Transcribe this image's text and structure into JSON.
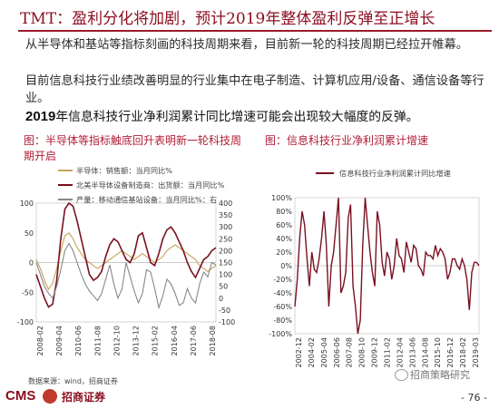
{
  "header": {
    "title": "TMT：盈利分化将加剧，预计2019年整体盈利反弹至正增长"
  },
  "body": {
    "para1": "从半导体和基站等指标刻画的科技周期来看，目前新一轮的科技周期已经拉开帷幕。",
    "para2": "目前信息科技行业绩改善明显的行业集中在电子制造、计算机应用/设备、通信设备等行业。",
    "para3_year": "2019",
    "para3_rest": "年信息科技行业净利润累计同比增速可能会出现较大幅度的反弹。"
  },
  "chart_data": [
    {
      "type": "line",
      "title": "图：半导体等指标触底回升表明新一轮科技周期开启",
      "x_tick_labels": [
        "2008-02",
        "2009-04",
        "2010-06",
        "2011-08",
        "2012-10",
        "2013-12",
        "2015-02",
        "2016-04",
        "2017-06",
        "2018-08"
      ],
      "y_left": {
        "ticks": [
          -100,
          -50,
          0,
          50,
          100
        ],
        "range": [
          -100,
          100
        ]
      },
      "y_right": {
        "ticks": [
          -100,
          -50,
          0,
          50,
          100,
          150,
          200,
          250,
          300,
          350,
          400
        ],
        "range": [
          -100,
          400
        ]
      },
      "series": [
        {
          "name": "半导体：销售额：当月同比%",
          "color": "#c5a35a",
          "axis": "left",
          "values": [
            5,
            -10,
            -30,
            -45,
            -35,
            -10,
            20,
            45,
            50,
            40,
            25,
            15,
            5,
            0,
            -5,
            -10,
            -5,
            0,
            5,
            10,
            15,
            20,
            15,
            10,
            5,
            10,
            15,
            10,
            5,
            0,
            5,
            10,
            20,
            25,
            30,
            25,
            20,
            15,
            10,
            5,
            -5,
            -10,
            -15,
            -10,
            -5
          ]
        },
        {
          "name": "北美半导体设备制造商：出货额：当月同比%",
          "color": "#7a1020",
          "axis": "left",
          "values": [
            -20,
            -40,
            -60,
            -75,
            -70,
            -30,
            40,
            90,
            100,
            95,
            70,
            40,
            10,
            -20,
            -30,
            -25,
            -15,
            10,
            30,
            40,
            35,
            20,
            5,
            0,
            15,
            45,
            50,
            25,
            0,
            -5,
            15,
            40,
            55,
            60,
            50,
            35,
            20,
            0,
            -15,
            -25,
            -10,
            5,
            10,
            20,
            25
          ]
        },
        {
          "name": "产量：移动通信基站设备：当月同比%：右",
          "color": "#888888",
          "axis": "right",
          "values": [
            150,
            100,
            50,
            20,
            0,
            50,
            120,
            200,
            230,
            200,
            150,
            100,
            60,
            30,
            10,
            -10,
            20,
            80,
            140,
            60,
            0,
            40,
            150,
            90,
            30,
            -20,
            20,
            120,
            110,
            40,
            -40,
            10,
            80,
            60,
            20,
            -30,
            -20,
            40,
            0,
            -20,
            60,
            110,
            90,
            150,
            140
          ]
        }
      ]
    },
    {
      "type": "line",
      "title": "图：信息科技行业净利润累计增速",
      "x_tick_labels": [
        "2002-12",
        "2004-02",
        "2005-04",
        "2006-06",
        "2007-08",
        "2008-10",
        "2009-12",
        "2011-02",
        "2012-04",
        "2013-06",
        "2014-08",
        "2015-10",
        "2016-12",
        "2018-02",
        "2019-03"
      ],
      "y": {
        "ticks": [
          -100,
          -80,
          -60,
          -40,
          -20,
          0,
          20,
          40,
          60,
          80,
          100
        ],
        "range": [
          -100,
          100
        ]
      },
      "series": [
        {
          "name": "信息科技行业净利润累计同比增速",
          "color": "#7a1020",
          "values": [
            -60,
            -20,
            40,
            80,
            60,
            10,
            -30,
            20,
            -5,
            -10,
            10,
            40,
            80,
            30,
            -60,
            0,
            20,
            60,
            100,
            -40,
            -30,
            -10,
            70,
            90,
            -30,
            -60,
            -100,
            -80,
            30,
            100,
            60,
            20,
            -10,
            -30,
            80,
            60,
            5,
            -15,
            20,
            10,
            -20,
            0,
            40,
            15,
            10,
            -10,
            35,
            20,
            5,
            30,
            25,
            0,
            -5,
            -15,
            20,
            15,
            15,
            10,
            30,
            15,
            25,
            20,
            10,
            -20,
            -10,
            10,
            10,
            0,
            -5,
            10,
            0,
            -20,
            -65,
            -10,
            5,
            5,
            0
          ]
        }
      ]
    }
  ],
  "footer": {
    "source": "数据来源：wind，招商证券",
    "logo_text": "CMS",
    "logo_cn": "招商证券",
    "wechat": "招商策略研究",
    "page": "- 76 -"
  }
}
